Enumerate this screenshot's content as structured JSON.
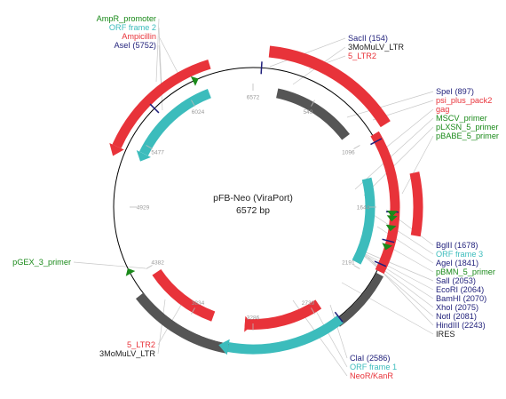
{
  "title": "pFB-Neo (ViraPort)",
  "size_label": "6572 bp",
  "length": 6572,
  "colors": {
    "enzyme": "#1f1f7a",
    "primer": "#1a8a1a",
    "orf": "#3cbcbc",
    "feature_red": "#e8333a",
    "feature_grey": "#555555",
    "tick": "#9a9a9a"
  },
  "ticks": [
    "549",
    "1096",
    "1644",
    "2191",
    "2739",
    "3286",
    "3834",
    "4382",
    "4929",
    "5477",
    "6024",
    "6572"
  ],
  "label_groups": {
    "top_left": [
      {
        "text": "AmpR_promoter",
        "kind": "primer"
      },
      {
        "text": "ORF frame 2",
        "kind": "orf"
      },
      {
        "text": "Ampicillin",
        "kind": "red"
      },
      {
        "text": "AseI  (5752)",
        "kind": "enzyme"
      }
    ],
    "top_center": [
      {
        "text": "SacII  (154)",
        "kind": "enzyme"
      },
      {
        "text": "3MoMuLV_LTR",
        "kind": "dark"
      },
      {
        "text": "5_LTR2",
        "kind": "red"
      }
    ],
    "right_upper": [
      {
        "text": "SpeI  (897)",
        "kind": "enzyme"
      },
      {
        "text": "psi_plus_pack2",
        "kind": "red"
      },
      {
        "text": "gag",
        "kind": "red"
      },
      {
        "text": "MSCV_primer",
        "kind": "primer"
      },
      {
        "text": "pLXSN_5_primer",
        "kind": "primer"
      },
      {
        "text": "pBABE_5_primer",
        "kind": "primer"
      }
    ],
    "right_lower": [
      {
        "text": "BglII  (1678)",
        "kind": "enzyme"
      },
      {
        "text": "ORF frame 3",
        "kind": "orf"
      },
      {
        "text": "AgeI  (1841)",
        "kind": "enzyme"
      },
      {
        "text": "pBMN_5_primer",
        "kind": "primer"
      },
      {
        "text": "SalI  (2053)",
        "kind": "enzyme"
      },
      {
        "text": "EcoRI  (2064)",
        "kind": "enzyme"
      },
      {
        "text": "BamHI  (2070)",
        "kind": "enzyme"
      },
      {
        "text": "XhoI  (2075)",
        "kind": "enzyme"
      },
      {
        "text": "NotI  (2081)",
        "kind": "enzyme"
      },
      {
        "text": "HindIII  (2243)",
        "kind": "enzyme"
      },
      {
        "text": "IRES",
        "kind": "dark"
      }
    ],
    "bottom_center": [
      {
        "text": "ClaI  (2586)",
        "kind": "enzyme"
      },
      {
        "text": "ORF frame 1",
        "kind": "orf"
      },
      {
        "text": "NeoR/KanR",
        "kind": "red"
      }
    ],
    "left_mid": [
      {
        "text": "pGEX_3_primer",
        "kind": "primer"
      }
    ],
    "bottom_left": [
      {
        "text": "5_LTR2",
        "kind": "red"
      },
      {
        "text": "3MoMuLV_LTR",
        "kind": "dark"
      }
    ]
  }
}
